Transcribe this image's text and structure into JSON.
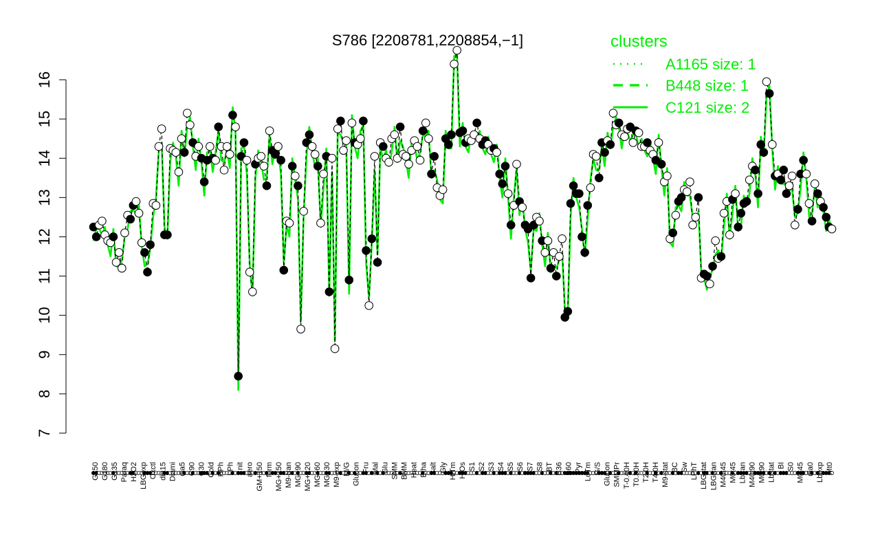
{
  "chart_data": {
    "type": "line",
    "title": "S786 [2208781,2208854,−1]",
    "ylim": [
      7,
      16.8
    ],
    "y_ticks": [
      7,
      8,
      9,
      10,
      11,
      12,
      13,
      14,
      15,
      16
    ],
    "grid": false,
    "legend_position": "top-right",
    "legend": {
      "title": "clusters",
      "entries": [
        {
          "label": "A1165 size: 1",
          "style": "dotted"
        },
        {
          "label": "B448 size: 1",
          "style": "dashed"
        },
        {
          "label": "C121 size: 2",
          "style": "solid"
        }
      ]
    },
    "colors": {
      "line": "#00ee00",
      "point_fill_dark": "#000000",
      "point_fill_light": "#ffffff",
      "dashed": "#000000"
    },
    "x_labels": [
      "G150",
      "G180",
      "G135",
      "Paraq",
      "H2O2",
      "LBGexp",
      "Oxctl",
      "dia15",
      "Diami",
      "dia5",
      "C90",
      "C30",
      "Cold",
      "HPh",
      "LPh",
      "nit",
      "aero",
      "GM+150",
      "ferm",
      "MG+150",
      "M9-tran",
      "MG+90",
      "MG+120",
      "MG+60",
      "MG+30",
      "M9-exp",
      "M/G",
      "Glucon",
      "Fru",
      "Mal",
      "Glu",
      "SMM",
      "BMM",
      "Heat",
      "Etha",
      "Salt",
      "Gly",
      "HiTm",
      "HiOs",
      "S1",
      "S2",
      "S3",
      "S4",
      "S5",
      "S6",
      "S7",
      "S8",
      "BT",
      "B36",
      "B60",
      "Pyr",
      "LoTm",
      "G/S",
      "Glucon",
      "SMMPr",
      "T-0.40H",
      "T0.30H",
      "T2.0H",
      "T4.0H",
      "M9-stat",
      "BC",
      "Sw",
      "LPhT",
      "LBGstat",
      "LBGtran",
      "M40t45",
      "M0t45",
      "Lbtran",
      "M40t90",
      "M0t90",
      "Lbstat",
      "BI",
      "S0",
      "M0t45",
      "dia0",
      "Lbexp",
      "Mt0"
    ],
    "points": [
      12.25,
      12.0,
      12.3,
      12.4,
      12.05,
      11.9,
      11.85,
      12.0,
      11.35,
      11.6,
      11.2,
      12.1,
      12.55,
      12.45,
      12.8,
      12.9,
      12.6,
      11.85,
      11.6,
      11.1,
      11.8,
      12.85,
      12.8,
      14.3,
      14.75,
      12.05,
      12.05,
      14.25,
      14.2,
      14.15,
      13.65,
      14.5,
      14.15,
      15.15,
      14.85,
      14.4,
      14.05,
      14.3,
      14.0,
      13.4,
      13.95,
      14.3,
      14.0,
      13.95,
      14.8,
      14.3,
      13.7,
      14.3,
      14.1,
      15.1,
      14.8,
      8.45,
      14.05,
      14.4,
      13.95,
      11.1,
      10.6,
      13.85,
      14.0,
      14.05,
      13.8,
      13.3,
      14.7,
      14.2,
      14.1,
      14.3,
      13.95,
      11.15,
      12.4,
      12.35,
      13.8,
      13.55,
      13.3,
      9.65,
      12.65,
      14.4,
      14.6,
      14.3,
      14.1,
      13.8,
      12.35,
      13.6,
      14.05,
      10.6,
      14.0,
      9.15,
      14.75,
      14.95,
      14.2,
      14.45,
      10.9,
      14.9,
      14.4,
      14.35,
      14.5,
      14.95,
      11.65,
      10.25,
      11.95,
      14.05,
      11.35,
      14.4,
      14.3,
      14.0,
      13.9,
      14.5,
      14.6,
      14.0,
      14.8,
      14.1,
      14.05,
      13.85,
      14.2,
      14.45,
      14.3,
      13.95,
      14.7,
      14.9,
      14.5,
      13.6,
      14.05,
      13.25,
      13.05,
      13.2,
      14.5,
      14.35,
      14.6,
      16.4,
      16.75,
      14.65,
      14.7,
      14.4,
      14.5,
      14.45,
      14.6,
      14.9,
      14.5,
      14.35,
      14.45,
      14.35,
      14.2,
      14.25,
      14.15,
      13.6,
      13.35,
      13.8,
      13.1,
      12.3,
      12.8,
      13.85,
      12.9,
      12.75,
      12.3,
      12.2,
      10.95,
      12.3,
      12.5,
      12.4,
      11.9,
      11.6,
      11.9,
      11.2,
      11.6,
      11.0,
      11.5,
      11.95,
      9.95,
      10.1,
      12.85,
      13.3,
      13.1,
      13.1,
      12.0,
      11.6,
      12.8,
      13.25,
      14.1,
      14.05,
      13.5,
      14.4,
      14.15,
      14.45,
      14.35,
      15.15,
      14.85,
      14.9,
      14.6,
      14.55,
      14.75,
      14.8,
      14.4,
      14.7,
      14.65,
      14.3,
      14.3,
      14.4,
      14.2,
      14.1,
      13.95,
      14.4,
      13.85,
      13.4,
      13.55,
      11.95,
      12.1,
      12.55,
      12.9,
      13.0,
      13.2,
      13.15,
      13.4,
      12.3,
      12.5,
      13.0,
      10.95,
      11.05,
      11.0,
      10.8,
      11.25,
      11.9,
      11.45,
      11.5,
      12.6,
      12.9,
      12.05,
      12.95,
      13.1,
      12.25,
      12.6,
      12.85,
      12.9,
      13.45,
      13.8,
      13.7,
      13.1,
      14.35,
      14.15,
      15.95,
      15.65,
      14.35,
      13.55,
      13.6,
      13.45,
      13.7,
      13.1,
      13.3,
      13.55,
      12.3,
      12.7,
      13.6,
      13.95,
      13.6,
      12.85,
      12.4,
      13.35,
      13.1,
      12.9,
      12.75,
      12.5,
      12.25,
      12.2
    ],
    "point_fill": "ddllllldlllllddllldddllllddllllldlldlldddldldlllldldddllldllldlddlddlldldllddlldllddllldlldldllddldldldllllldllllllldllddllldddlldddllldlddlldldddldlldlddddlldlldldlldddddddddllldddldlldllldldllldlldldllldlddllllldlddldlldllldlddddllddddldldldddllldddlldldldddlld"
  }
}
